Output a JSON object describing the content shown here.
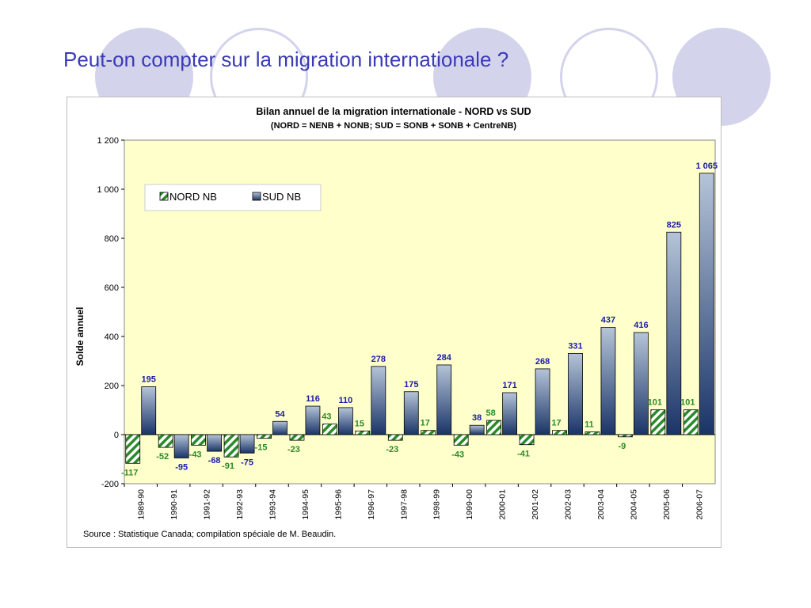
{
  "slide": {
    "title": "Peut-on compter sur la migration internationale ?",
    "decor_color": "#d3d3ec",
    "title_color": "#3a3ab5"
  },
  "chart_data": {
    "type": "bar",
    "title": "Bilan annuel de la migration internationale - NORD vs SUD",
    "subtitle": "(NORD = NENB + NONB; SUD = SONB + SONB + CentreNB)",
    "ylabel": "Solde annuel",
    "xlabel": "",
    "ylim": [
      -200,
      1200
    ],
    "yticks": [
      -200,
      0,
      200,
      400,
      600,
      800,
      1000,
      1200
    ],
    "ytick_labels": [
      "-200",
      "0",
      "200",
      "400",
      "600",
      "800",
      "1 000",
      "1 200"
    ],
    "grid": false,
    "plot_background": "#ffffcc",
    "legend_position": "top-left",
    "categories": [
      "1989-90",
      "1990-91",
      "1991-92",
      "1992-93",
      "1993-94",
      "1994-95",
      "1995-96",
      "1996-97",
      "1997-98",
      "1998-99",
      "1999-00",
      "2000-01",
      "2001-02",
      "2002-03",
      "2003-04",
      "2004-05",
      "2005-06",
      "2006-07"
    ],
    "series": [
      {
        "name": "NORD NB",
        "color": "#2a8a2a",
        "label_color": "#2a8a2a",
        "pattern": "diagonal-hatch",
        "values": [
          -117,
          -52,
          -43,
          -91,
          -15,
          -23,
          43,
          15,
          -23,
          17,
          -43,
          58,
          -41,
          17,
          11,
          -9,
          101,
          101
        ],
        "labels": [
          "-117",
          "-52",
          "-43",
          "-91",
          "-15",
          "-23",
          "43",
          "15",
          "-23",
          "17",
          "-43",
          "58",
          "-41",
          "17",
          "11",
          "-9",
          "101",
          "101"
        ]
      },
      {
        "name": "SUD NB",
        "color": "#1f3a6e",
        "label_color": "#1a1aa8",
        "pattern": "vertical-gradient",
        "values": [
          195,
          -95,
          -68,
          -75,
          54,
          116,
          110,
          278,
          175,
          284,
          38,
          171,
          268,
          331,
          437,
          416,
          825,
          1065
        ],
        "labels": [
          "195",
          "-95",
          "-68",
          "-75",
          "54",
          "116",
          "110",
          "278",
          "175",
          "284",
          "38",
          "171",
          "268",
          "331",
          "437",
          "416",
          "825",
          "1 065"
        ]
      }
    ],
    "source": "Source : Statistique Canada; compilation spéciale de M. Beaudin."
  }
}
